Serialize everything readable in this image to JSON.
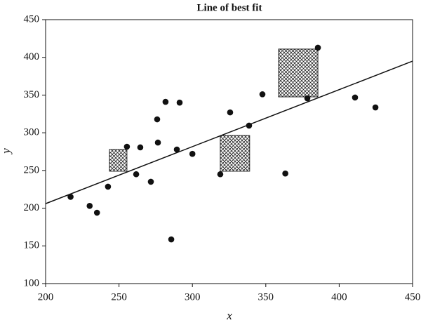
{
  "chart_data": {
    "type": "scatter",
    "title": "Line of best fit",
    "x_label": "x",
    "y_label": "y",
    "x": [
      217,
      230,
      235,
      242.5,
      255.4,
      261.7,
      264.5,
      271.7,
      276,
      276.5,
      281.7,
      285.6,
      289.4,
      291.3,
      300,
      319,
      325.7,
      338.6,
      347.7,
      363.3,
      378.3,
      385.5,
      410.8,
      424.7
    ],
    "values": [
      215,
      203,
      194,
      228.5,
      281.5,
      245,
      280.6,
      235,
      317.8,
      287,
      341,
      158.6,
      277.8,
      340,
      272,
      245,
      327,
      309.5,
      351,
      246,
      345.7,
      412.8,
      346.7,
      333.6
    ],
    "color": "#111111",
    "fit_line": {
      "x": [
        200,
        450
      ],
      "y": [
        206,
        395
      ],
      "color": "#111111"
    },
    "squares": [
      {
        "x0": 243.5,
        "x1": 255.4,
        "y0": 249,
        "y1": 277.8
      },
      {
        "x0": 319,
        "x1": 339,
        "y0": 249,
        "y1": 296.4
      },
      {
        "x0": 358.7,
        "x1": 385.5,
        "y0": 347.6,
        "y1": 411
      }
    ],
    "xlim": [
      200,
      450
    ],
    "ylim": [
      100,
      450
    ],
    "xticks": [
      200,
      250,
      300,
      350,
      400,
      450
    ],
    "yticks": [
      100,
      150,
      200,
      250,
      300,
      350,
      400,
      450
    ]
  }
}
